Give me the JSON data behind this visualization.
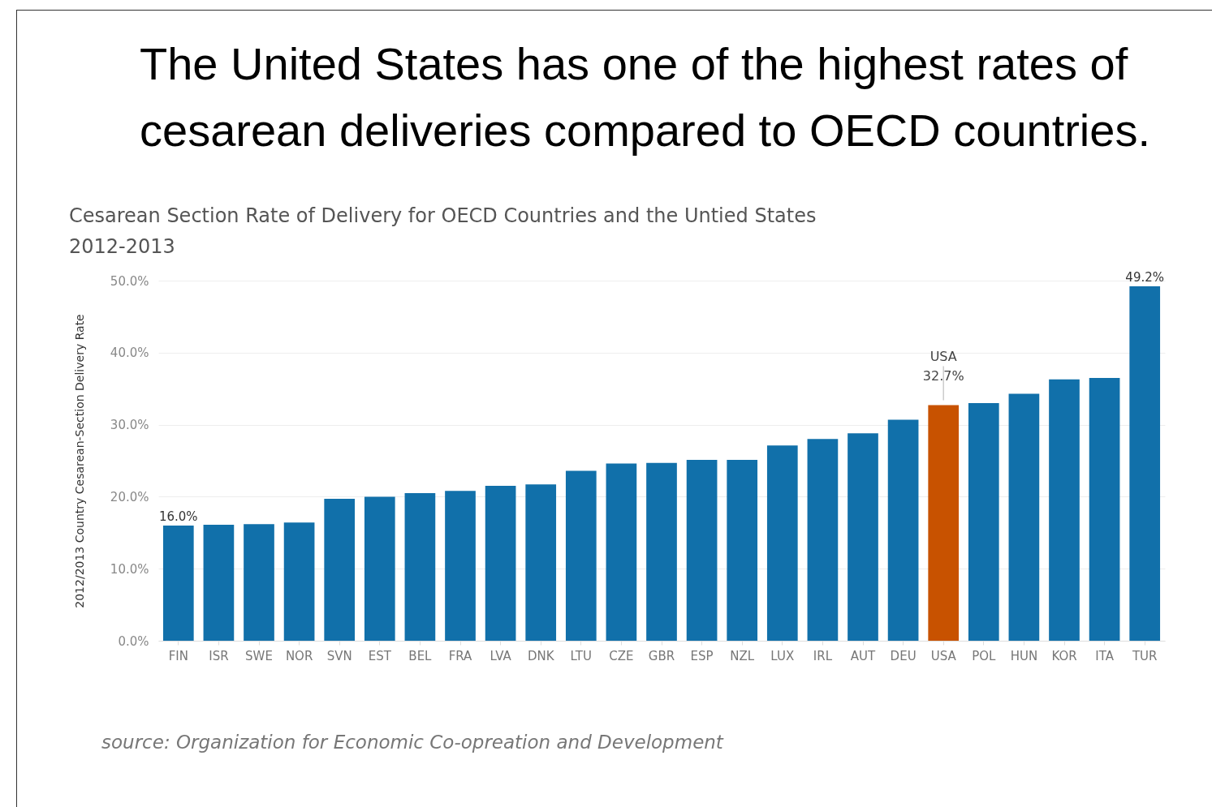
{
  "chart_data": {
    "type": "bar",
    "title": "The United States has one of the highest rates of cesarean deliveries compared to OECD countries.",
    "subtitle": "Cesarean Section Rate of Delivery for OECD Countries and the Untied States\n2012-2013",
    "ylabel": "2012/2013 Country Cesarean-Section Delivery Rate",
    "categories": [
      "FIN",
      "ISR",
      "SWE",
      "NOR",
      "SVN",
      "EST",
      "BEL",
      "FRA",
      "LVA",
      "DNK",
      "LTU",
      "CZE",
      "GBR",
      "ESP",
      "NZL",
      "LUX",
      "IRL",
      "AUT",
      "DEU",
      "USA",
      "POL",
      "HUN",
      "KOR",
      "ITA",
      "TUR"
    ],
    "values": [
      16.0,
      16.1,
      16.2,
      16.4,
      19.7,
      20.0,
      20.5,
      20.8,
      21.5,
      21.7,
      23.6,
      24.6,
      24.7,
      25.1,
      25.1,
      27.1,
      28.0,
      28.8,
      30.7,
      32.7,
      33.0,
      34.3,
      36.3,
      36.5,
      49.2
    ],
    "colors": [
      "#1170aa",
      "#1170aa",
      "#1170aa",
      "#1170aa",
      "#1170aa",
      "#1170aa",
      "#1170aa",
      "#1170aa",
      "#1170aa",
      "#1170aa",
      "#1170aa",
      "#1170aa",
      "#1170aa",
      "#1170aa",
      "#1170aa",
      "#1170aa",
      "#1170aa",
      "#1170aa",
      "#1170aa",
      "#c85200",
      "#1170aa",
      "#1170aa",
      "#1170aa",
      "#1170aa",
      "#1170aa"
    ],
    "value_labels": [
      "16.0%",
      null,
      null,
      null,
      null,
      null,
      null,
      null,
      null,
      null,
      null,
      null,
      null,
      null,
      null,
      null,
      null,
      null,
      null,
      null,
      null,
      null,
      null,
      null,
      "49.2%"
    ],
    "ylim": [
      0,
      50
    ],
    "yticks": [
      {
        "value": 0,
        "label": "0.0%"
      },
      {
        "value": 10,
        "label": "10.0%"
      },
      {
        "value": 20,
        "label": "20.0%"
      },
      {
        "value": 30,
        "label": "30.0%"
      },
      {
        "value": 40,
        "label": "40.0%"
      },
      {
        "value": 50,
        "label": "50.0%"
      }
    ],
    "grid": "y",
    "annotations": [
      {
        "text": "USA\n32.7%",
        "x": "USA",
        "y": 32.7
      },
      "source: Organization for Economic Co-opreation and Development"
    ]
  }
}
